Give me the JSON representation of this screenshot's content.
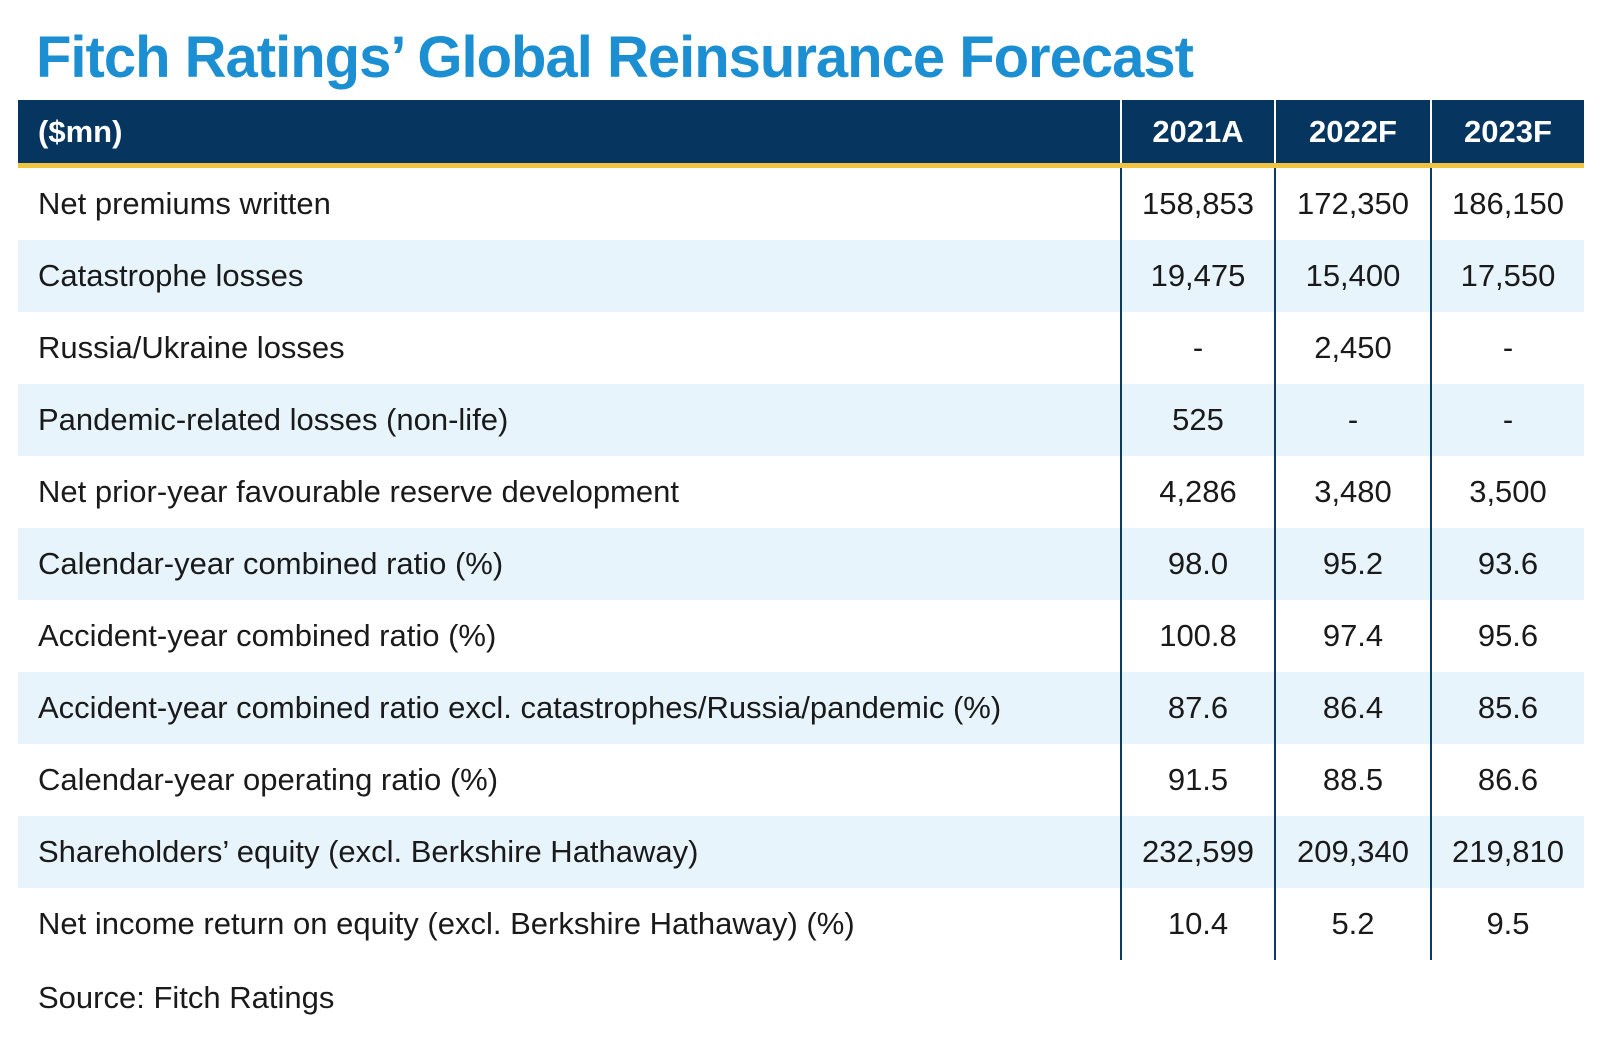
{
  "title": "Fitch Ratings’ Global Reinsurance Forecast",
  "source": "Source: Fitch Ratings",
  "colors": {
    "title": "#1b8fd2",
    "header_bg": "#06365f",
    "header_rule": "#f0c340",
    "row_shade": "#e7f4fc"
  },
  "chart_data": {
    "type": "table",
    "title": "Fitch Ratings’ Global Reinsurance Forecast",
    "unit_header": "($mn)",
    "columns": [
      "2021A",
      "2022F",
      "2023F"
    ],
    "rows": [
      {
        "label": "Net premiums written",
        "values": [
          "158,853",
          "172,350",
          "186,150"
        ]
      },
      {
        "label": "Catastrophe losses",
        "values": [
          "19,475",
          "15,400",
          "17,550"
        ]
      },
      {
        "label": "Russia/Ukraine losses",
        "values": [
          "-",
          "2,450",
          "-"
        ]
      },
      {
        "label": "Pandemic-related losses (non-life)",
        "values": [
          "525",
          "-",
          "-"
        ]
      },
      {
        "label": "Net prior-year favourable reserve development",
        "values": [
          "4,286",
          "3,480",
          "3,500"
        ]
      },
      {
        "label": "Calendar-year combined ratio (%)",
        "values": [
          "98.0",
          "95.2",
          "93.6"
        ]
      },
      {
        "label": "Accident-year combined ratio (%)",
        "values": [
          "100.8",
          "97.4",
          "95.6"
        ]
      },
      {
        "label": "Accident-year combined ratio excl. catastrophes/Russia/pandemic (%)",
        "values": [
          "87.6",
          "86.4",
          "85.6"
        ]
      },
      {
        "label": "Calendar-year operating ratio (%)",
        "values": [
          "91.5",
          "88.5",
          "86.6"
        ]
      },
      {
        "label": "Shareholders’ equity (excl. Berkshire Hathaway)",
        "values": [
          "232,599",
          "209,340",
          "219,810"
        ]
      },
      {
        "label": "Net income return on equity (excl. Berkshire Hathaway) (%)",
        "values": [
          "10.4",
          "5.2",
          "9.5"
        ]
      }
    ],
    "source": "Source: Fitch Ratings"
  }
}
